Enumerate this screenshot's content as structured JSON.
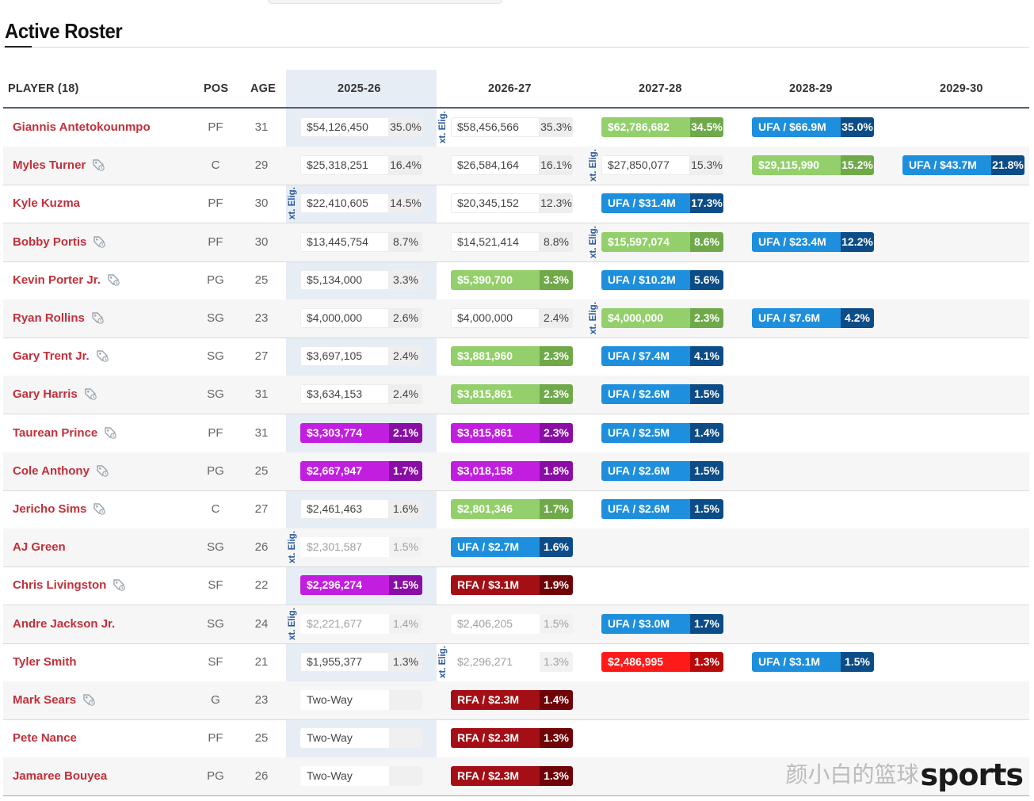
{
  "page": {
    "title": "Active Roster"
  },
  "header": {
    "player": "PLAYER (18)",
    "pos": "POS",
    "age": "AGE",
    "seasons": [
      "2025-26",
      "2026-27",
      "2027-28",
      "2028-29",
      "2029-30"
    ]
  },
  "extension_label": "xt. Elig.",
  "watermark": {
    "cn": "颜小白的篮球",
    "en": "sports"
  },
  "rows": [
    {
      "name": "Giannis Antetokounmpo",
      "tag": false,
      "pos": "PF",
      "age": "31",
      "cells": [
        {
          "t": "gtd",
          "v": "$54,126,450",
          "p": "35.0%"
        },
        {
          "t": "gtd",
          "v": "$58,456,566",
          "p": "35.3%"
        },
        {
          "t": "team",
          "v": "$62,786,682",
          "p": "34.5%"
        },
        {
          "t": "ufa",
          "v": "UFA / $66.9M",
          "p": "35.0%"
        },
        null
      ],
      "xelig": [
        1
      ]
    },
    {
      "name": "Myles Turner",
      "tag": true,
      "pos": "C",
      "age": "29",
      "cells": [
        {
          "t": "gtd",
          "v": "$25,318,251",
          "p": "16.4%"
        },
        {
          "t": "gtd",
          "v": "$26,584,164",
          "p": "16.1%"
        },
        {
          "t": "gtd",
          "v": "$27,850,077",
          "p": "15.3%"
        },
        {
          "t": "team",
          "v": "$29,115,990",
          "p": "15.2%"
        },
        {
          "t": "ufa",
          "v": "UFA / $43.7M",
          "p": "21.8%"
        }
      ],
      "xelig": [
        2
      ]
    },
    {
      "name": "Kyle Kuzma",
      "tag": false,
      "pos": "PF",
      "age": "30",
      "cells": [
        {
          "t": "gtd",
          "v": "$22,410,605",
          "p": "14.5%"
        },
        {
          "t": "gtd",
          "v": "$20,345,152",
          "p": "12.3%"
        },
        {
          "t": "ufa",
          "v": "UFA / $31.4M",
          "p": "17.3%"
        },
        null,
        null
      ],
      "xelig": [
        0
      ]
    },
    {
      "name": "Bobby Portis",
      "tag": true,
      "pos": "PF",
      "age": "30",
      "cells": [
        {
          "t": "gtd",
          "v": "$13,445,754",
          "p": "8.7%"
        },
        {
          "t": "gtd",
          "v": "$14,521,414",
          "p": "8.8%"
        },
        {
          "t": "team",
          "v": "$15,597,074",
          "p": "8.6%"
        },
        {
          "t": "ufa",
          "v": "UFA / $23.4M",
          "p": "12.2%"
        },
        null
      ],
      "xelig": [
        2
      ]
    },
    {
      "name": "Kevin Porter Jr.",
      "tag": true,
      "pos": "PG",
      "age": "25",
      "cells": [
        {
          "t": "gtd",
          "v": "$5,134,000",
          "p": "3.3%"
        },
        {
          "t": "team",
          "v": "$5,390,700",
          "p": "3.3%"
        },
        {
          "t": "ufa",
          "v": "UFA / $10.2M",
          "p": "5.6%"
        },
        null,
        null
      ],
      "xelig": []
    },
    {
      "name": "Ryan Rollins",
      "tag": true,
      "pos": "SG",
      "age": "23",
      "cells": [
        {
          "t": "gtd",
          "v": "$4,000,000",
          "p": "2.6%"
        },
        {
          "t": "gtd",
          "v": "$4,000,000",
          "p": "2.4%"
        },
        {
          "t": "team",
          "v": "$4,000,000",
          "p": "2.3%"
        },
        {
          "t": "ufa",
          "v": "UFA / $7.6M",
          "p": "4.2%"
        },
        null
      ],
      "xelig": [
        2
      ]
    },
    {
      "name": "Gary Trent Jr.",
      "tag": true,
      "pos": "SG",
      "age": "27",
      "cells": [
        {
          "t": "gtd",
          "v": "$3,697,105",
          "p": "2.4%"
        },
        {
          "t": "team",
          "v": "$3,881,960",
          "p": "2.3%"
        },
        {
          "t": "ufa",
          "v": "UFA / $7.4M",
          "p": "4.1%"
        },
        null,
        null
      ],
      "xelig": []
    },
    {
      "name": "Gary Harris",
      "tag": true,
      "pos": "SG",
      "age": "31",
      "cells": [
        {
          "t": "gtd",
          "v": "$3,634,153",
          "p": "2.4%"
        },
        {
          "t": "team",
          "v": "$3,815,861",
          "p": "2.3%"
        },
        {
          "t": "ufa",
          "v": "UFA / $2.6M",
          "p": "1.5%"
        },
        null,
        null
      ],
      "xelig": []
    },
    {
      "name": "Taurean Prince",
      "tag": true,
      "pos": "PF",
      "age": "31",
      "cells": [
        {
          "t": "tq",
          "v": "$3,303,774",
          "p": "2.1%"
        },
        {
          "t": "tq",
          "v": "$3,815,861",
          "p": "2.3%"
        },
        {
          "t": "ufa",
          "v": "UFA / $2.5M",
          "p": "1.4%"
        },
        null,
        null
      ],
      "xelig": []
    },
    {
      "name": "Cole Anthony",
      "tag": true,
      "pos": "PG",
      "age": "25",
      "cells": [
        {
          "t": "tq",
          "v": "$2,667,947",
          "p": "1.7%"
        },
        {
          "t": "tq",
          "v": "$3,018,158",
          "p": "1.8%"
        },
        {
          "t": "ufa",
          "v": "UFA / $2.6M",
          "p": "1.5%"
        },
        null,
        null
      ],
      "xelig": []
    },
    {
      "name": "Jericho Sims",
      "tag": true,
      "pos": "C",
      "age": "27",
      "cells": [
        {
          "t": "gtd",
          "v": "$2,461,463",
          "p": "1.6%"
        },
        {
          "t": "team",
          "v": "$2,801,346",
          "p": "1.7%"
        },
        {
          "t": "ufa",
          "v": "UFA / $2.6M",
          "p": "1.5%"
        },
        null,
        null
      ],
      "xelig": []
    },
    {
      "name": "AJ Green",
      "tag": false,
      "pos": "SG",
      "age": "26",
      "cells": [
        {
          "t": "non",
          "v": "$2,301,587",
          "p": "1.5%"
        },
        {
          "t": "ufa",
          "v": "UFA / $2.7M",
          "p": "1.6%"
        },
        null,
        null,
        null
      ],
      "xelig": [
        0
      ]
    },
    {
      "name": "Chris Livingston",
      "tag": true,
      "pos": "SF",
      "age": "22",
      "cells": [
        {
          "t": "tq",
          "v": "$2,296,274",
          "p": "1.5%"
        },
        {
          "t": "rfa",
          "v": "RFA / $3.1M",
          "p": "1.9%"
        },
        null,
        null,
        null
      ],
      "xelig": []
    },
    {
      "name": "Andre Jackson Jr.",
      "tag": false,
      "pos": "SG",
      "age": "24",
      "cells": [
        {
          "t": "non",
          "v": "$2,221,677",
          "p": "1.4%"
        },
        {
          "t": "non",
          "v": "$2,406,205",
          "p": "1.5%"
        },
        {
          "t": "ufa",
          "v": "UFA / $3.0M",
          "p": "1.7%"
        },
        null,
        null
      ],
      "xelig": [
        0
      ]
    },
    {
      "name": "Tyler Smith",
      "tag": false,
      "pos": "SF",
      "age": "21",
      "cells": [
        {
          "t": "gtd",
          "v": "$1,955,377",
          "p": "1.3%"
        },
        {
          "t": "non",
          "v": "$2,296,271",
          "p": "1.3%"
        },
        {
          "t": "ply",
          "v": "$2,486,995",
          "p": "1.3%"
        },
        {
          "t": "ufa",
          "v": "UFA / $3.1M",
          "p": "1.5%"
        },
        null
      ],
      "xelig": [
        1
      ]
    },
    {
      "name": "Mark Sears",
      "tag": true,
      "pos": "G",
      "age": "23",
      "cells": [
        {
          "t": "two",
          "v": "Two-Way",
          "p": ""
        },
        {
          "t": "rfa",
          "v": "RFA / $2.3M",
          "p": "1.4%"
        },
        null,
        null,
        null
      ],
      "xelig": []
    },
    {
      "name": "Pete Nance",
      "tag": false,
      "pos": "PF",
      "age": "25",
      "cells": [
        {
          "t": "two",
          "v": "Two-Way",
          "p": ""
        },
        {
          "t": "rfa",
          "v": "RFA / $2.3M",
          "p": "1.3%"
        },
        null,
        null,
        null
      ],
      "xelig": []
    },
    {
      "name": "Jamaree Bouyea",
      "tag": false,
      "pos": "PG",
      "age": "26",
      "cells": [
        {
          "t": "two",
          "v": "Two-Way",
          "p": ""
        },
        {
          "t": "rfa",
          "v": "RFA / $2.3M",
          "p": "1.3%"
        },
        null,
        null,
        null
      ],
      "xelig": []
    }
  ]
}
